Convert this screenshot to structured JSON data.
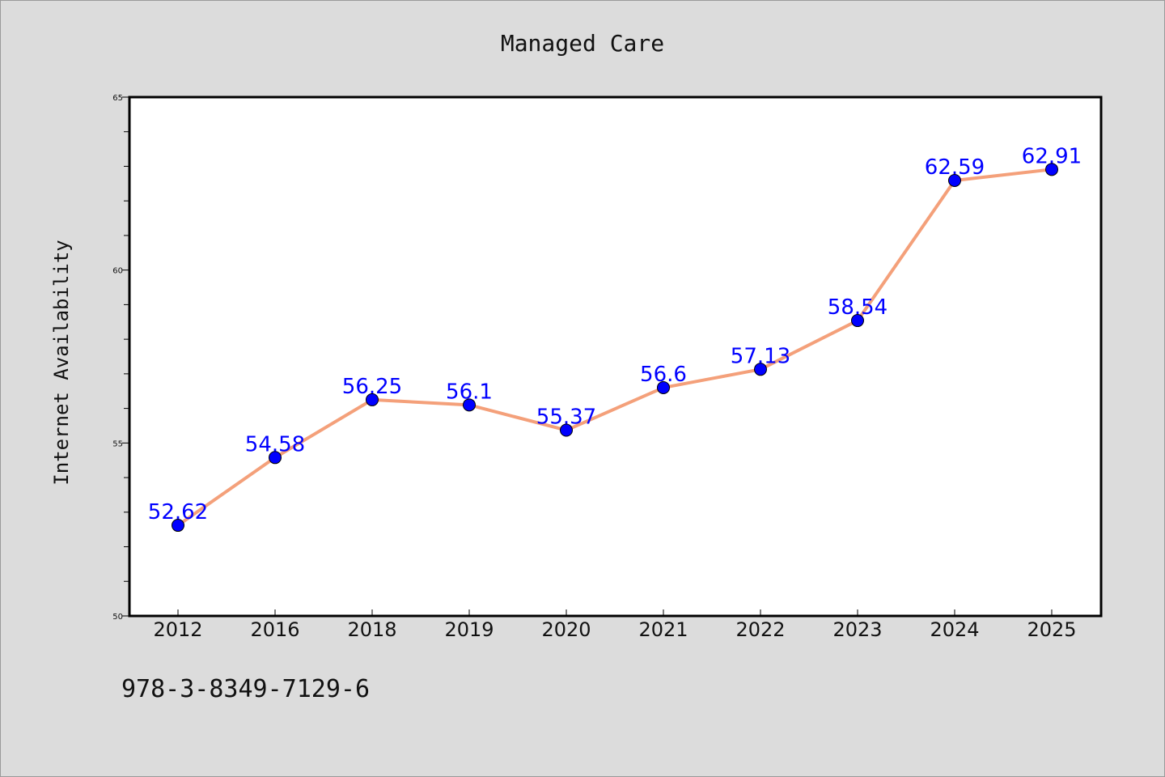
{
  "chart_data": {
    "type": "line",
    "title": "Managed Care",
    "xlabel": "",
    "ylabel": "Internet Availability",
    "categories": [
      "2012",
      "2016",
      "2018",
      "2019",
      "2020",
      "2021",
      "2022",
      "2023",
      "2024",
      "2025"
    ],
    "series": [
      {
        "values": [
          52.62,
          54.58,
          56.25,
          56.1,
          55.37,
          56.6,
          57.13,
          58.54,
          62.59,
          62.91
        ]
      }
    ],
    "ylim": [
      50,
      65
    ],
    "yticks": [
      "50",
      "55",
      "60",
      "65"
    ],
    "grid": false,
    "legend": "none",
    "line_color": "#f4a07a",
    "marker_color": "#0000ff",
    "label_color": "#0000ff"
  },
  "footer": {
    "isbn": "978-3-8349-7129-6"
  }
}
